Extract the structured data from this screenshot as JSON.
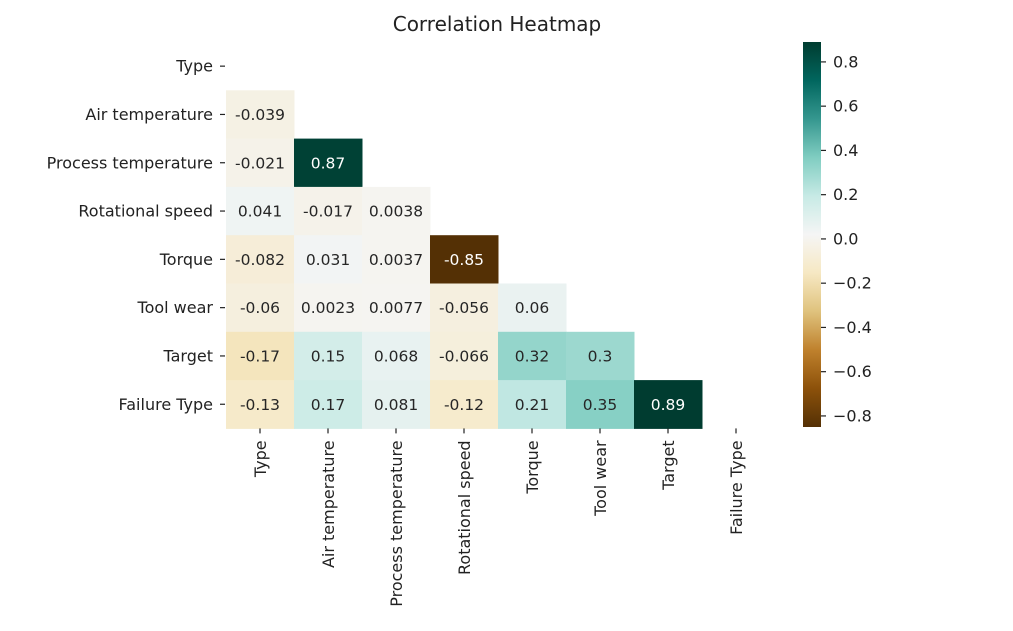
{
  "chart_data": {
    "type": "heatmap",
    "title": "Correlation Heatmap",
    "variables": [
      "Type",
      "Air temperature",
      "Process temperature",
      "Rotational speed",
      "Torque",
      "Tool wear",
      "Target",
      "Failure Type"
    ],
    "mask": "upper-triangle-including-diagonal",
    "values": [
      [
        null,
        null,
        null,
        null,
        null,
        null,
        null,
        null
      ],
      [
        -0.039,
        null,
        null,
        null,
        null,
        null,
        null,
        null
      ],
      [
        -0.021,
        0.87,
        null,
        null,
        null,
        null,
        null,
        null
      ],
      [
        0.041,
        -0.017,
        0.0038,
        null,
        null,
        null,
        null,
        null
      ],
      [
        -0.082,
        0.031,
        0.0037,
        -0.85,
        null,
        null,
        null,
        null
      ],
      [
        -0.06,
        0.0023,
        0.0077,
        -0.056,
        0.06,
        null,
        null,
        null
      ],
      [
        -0.17,
        0.15,
        0.068,
        -0.066,
        0.32,
        0.3,
        null,
        null
      ],
      [
        -0.13,
        0.17,
        0.081,
        -0.12,
        0.21,
        0.35,
        0.89,
        null
      ]
    ],
    "value_labels": [
      [
        null,
        null,
        null,
        null,
        null,
        null,
        null,
        null
      ],
      [
        "-0.039",
        null,
        null,
        null,
        null,
        null,
        null,
        null
      ],
      [
        "-0.021",
        "0.87",
        null,
        null,
        null,
        null,
        null,
        null
      ],
      [
        "0.041",
        "-0.017",
        "0.0038",
        null,
        null,
        null,
        null,
        null
      ],
      [
        "-0.082",
        "0.031",
        "0.0037",
        "-0.85",
        null,
        null,
        null,
        null
      ],
      [
        "-0.06",
        "0.0023",
        "0.0077",
        "-0.056",
        "0.06",
        null,
        null,
        null
      ],
      [
        "-0.17",
        "0.15",
        "0.068",
        "-0.066",
        "0.32",
        "0.3",
        null,
        null
      ],
      [
        "-0.13",
        "0.17",
        "0.081",
        "-0.12",
        "0.21",
        "0.35",
        "0.89",
        null
      ]
    ],
    "colormap": "BrBG",
    "color_range": [
      -0.85,
      0.89
    ],
    "colorbar_ticks": [
      0.8,
      0.6,
      0.4,
      0.2,
      0.0,
      -0.2,
      -0.4,
      -0.6,
      -0.8
    ],
    "colorbar_tick_labels": [
      "0.8",
      "0.6",
      "0.4",
      "0.2",
      "0.0",
      "−0.2",
      "−0.4",
      "−0.6",
      "−0.8"
    ],
    "annotations": true,
    "grid": false
  }
}
